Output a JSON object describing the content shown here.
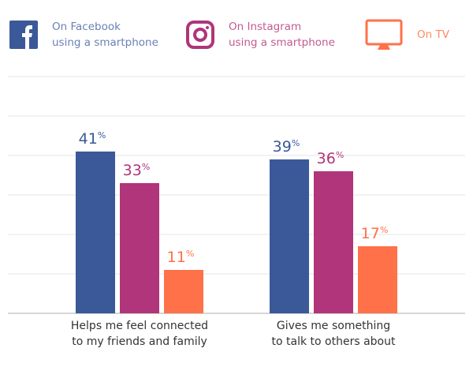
{
  "legend": [
    {
      "line1": "On Facebook",
      "line2": "using a smartphone",
      "icon": "facebook-icon",
      "color": "#3b5998",
      "text_color": "#6b7fb5"
    },
    {
      "line1": "On Instagram",
      "line2": "using a smartphone",
      "icon": "instagram-icon",
      "color": "#b0357a",
      "text_color": "#c35a92"
    },
    {
      "line1": "On TV",
      "line2": "",
      "icon": "tv-icon",
      "color": "#ff7148",
      "text_color": "#ff8a64"
    }
  ],
  "chart_data": {
    "type": "bar",
    "categories": [
      "Helps me feel connected\nto my friends and family",
      "Gives me something\nto talk to others about"
    ],
    "category_lines": [
      [
        "Helps me feel connected",
        "to my friends and family"
      ],
      [
        "Gives me something",
        "to talk to others about"
      ]
    ],
    "series": [
      {
        "name": "On Facebook using a smartphone",
        "values": [
          41,
          39
        ],
        "color": "#3b5998"
      },
      {
        "name": "On Instagram using a smartphone",
        "values": [
          33,
          36
        ],
        "color": "#b0357a"
      },
      {
        "name": "On TV",
        "values": [
          11,
          17
        ],
        "color": "#ff7148"
      }
    ],
    "unit": "%",
    "ylim": [
      0,
      60
    ],
    "grid": true,
    "legend_position": "top"
  }
}
